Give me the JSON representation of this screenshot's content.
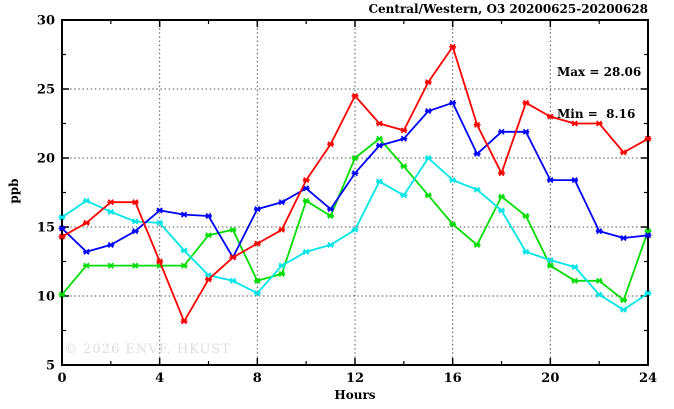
{
  "chart_data": {
    "type": "line",
    "title": "Central/Western, O3 20200625-20200628",
    "annotation": {
      "max_label": "Max = 28.06",
      "min_label": "Min =  8.16"
    },
    "xlabel": "Hours",
    "ylabel": "ppb",
    "watermark": "© 2026 ENVF, HKUST",
    "xlim": [
      0,
      24
    ],
    "ylim": [
      5,
      30
    ],
    "xticks": [
      0,
      4,
      8,
      12,
      16,
      20,
      24
    ],
    "yticks": [
      5,
      10,
      15,
      20,
      25,
      30
    ],
    "x_minor_step": 2,
    "y_minor_step": 2.5,
    "grid": "dotted gray at major ticks, interior only",
    "legend_position": "none",
    "marker": "star-asterisk",
    "x": [
      0,
      1,
      2,
      3,
      4,
      5,
      6,
      7,
      8,
      9,
      10,
      11,
      12,
      13,
      14,
      15,
      16,
      17,
      18,
      19,
      20,
      21,
      22,
      23,
      24
    ],
    "series": [
      {
        "name": "red",
        "color": "#ff0000",
        "values": [
          14.3,
          15.3,
          16.8,
          16.8,
          12.5,
          8.16,
          11.2,
          12.8,
          13.8,
          14.8,
          18.4,
          21.0,
          24.5,
          22.5,
          22.0,
          25.5,
          28.06,
          22.4,
          18.9,
          24.0,
          23.0,
          22.5,
          22.5,
          20.4,
          21.4
        ]
      },
      {
        "name": "blue",
        "color": "#0000ff",
        "values": [
          14.9,
          13.2,
          13.7,
          14.7,
          16.2,
          15.9,
          15.8,
          12.8,
          16.3,
          16.8,
          17.8,
          16.3,
          18.9,
          20.9,
          21.4,
          23.4,
          24.0,
          20.3,
          21.9,
          21.9,
          18.4,
          18.4,
          14.7,
          14.2,
          14.4
        ]
      },
      {
        "name": "green",
        "color": "#00dd00",
        "values": [
          10.1,
          12.2,
          12.2,
          12.2,
          12.2,
          12.2,
          14.4,
          14.8,
          11.1,
          11.6,
          16.9,
          15.8,
          20.0,
          21.4,
          19.4,
          17.3,
          15.2,
          13.7,
          17.2,
          15.8,
          12.2,
          11.1,
          11.1,
          9.7,
          14.7
        ]
      },
      {
        "name": "cyan",
        "color": "#00e6e6",
        "values": [
          15.7,
          16.9,
          16.1,
          15.4,
          15.3,
          13.3,
          11.5,
          11.1,
          10.2,
          12.2,
          13.2,
          13.7,
          14.8,
          18.3,
          17.3,
          20.0,
          18.4,
          17.7,
          16.2,
          13.2,
          12.6,
          12.1,
          10.1,
          9.0,
          10.2
        ]
      }
    ]
  }
}
